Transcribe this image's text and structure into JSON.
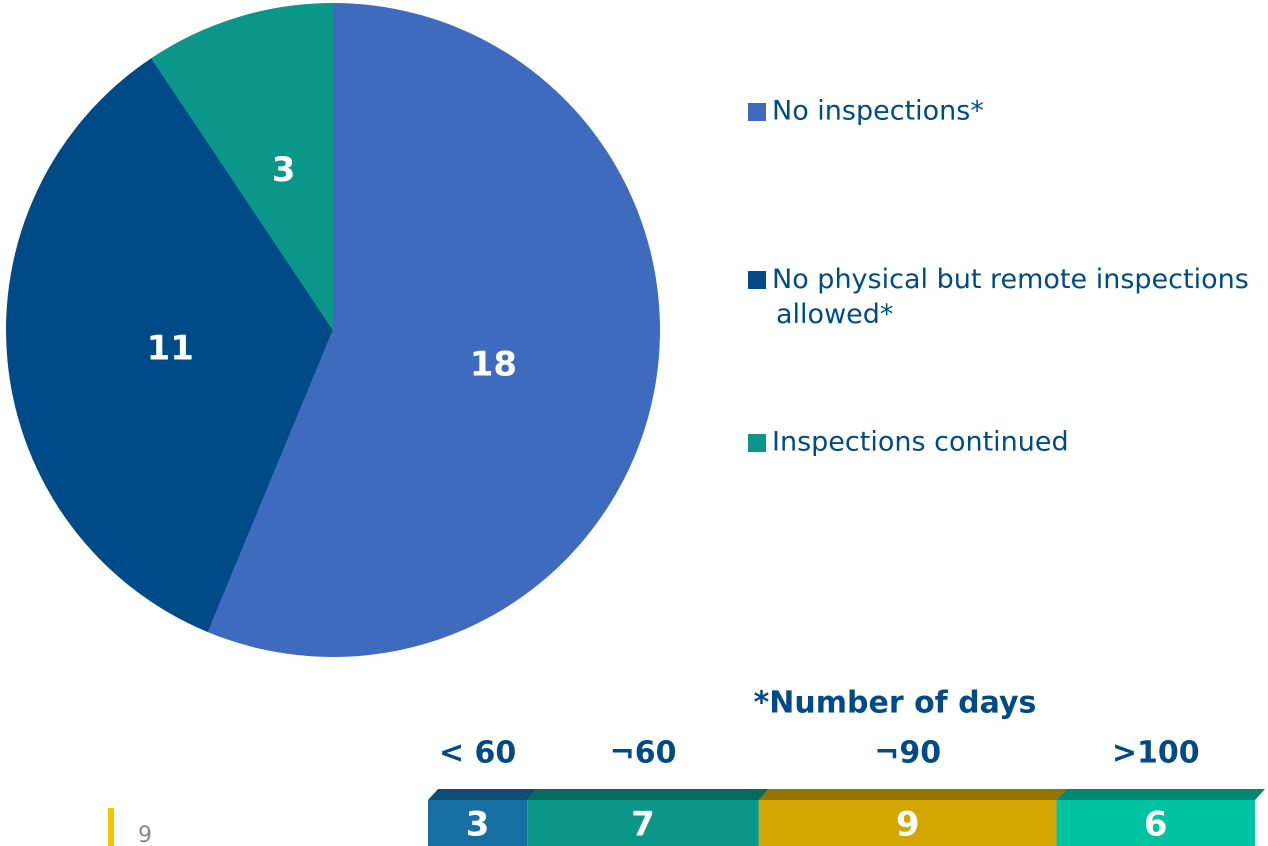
{
  "chart_data": [
    {
      "type": "pie",
      "categories": [
        "No inspections*",
        "No physical but  remote inspections allowed*",
        "Inspections continued"
      ],
      "values": [
        18,
        11,
        3
      ],
      "colors": [
        "#3f6bbf",
        "#004b87",
        "#0a9688"
      ]
    },
    {
      "type": "segments",
      "title": "*Number of days",
      "categories": [
        "< 60",
        "¬60",
        "¬90",
        ">100"
      ],
      "values": [
        3,
        7,
        9,
        6
      ],
      "colors": [
        "#1670a3",
        "#0a9688",
        "#d4a600",
        "#00c3a0"
      ]
    }
  ],
  "page_number": "9"
}
